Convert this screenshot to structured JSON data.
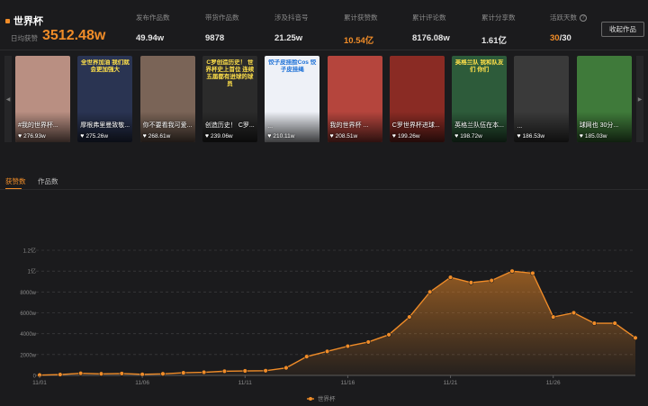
{
  "topic": {
    "name": "世界杯",
    "daily_label": "日均获赞",
    "daily_value": "3512.48w"
  },
  "stats": [
    {
      "label": "发布作品数",
      "value": "49.94w"
    },
    {
      "label": "带货作品数",
      "value": "9878"
    },
    {
      "label": "涉及抖音号",
      "value": "21.25w"
    },
    {
      "label": "累计获赞数",
      "value": "10.54亿",
      "accent": true
    },
    {
      "label": "累计评论数",
      "value": "8176.08w"
    },
    {
      "label": "累计分享数",
      "value": "1.61亿"
    },
    {
      "label": "活跃天数",
      "value_accent": "30",
      "value_rest": "/30",
      "info": "?"
    }
  ],
  "collect_button": "收起作品",
  "carousel": {
    "left_arrow": "◀",
    "right_arrow": "▶",
    "videos": [
      {
        "title": "#我的世界杯...",
        "likes": "276.93w",
        "caption": "",
        "bg": "#b98f82"
      },
      {
        "title": "摩根弗里曼致敬...",
        "likes": "275.26w",
        "caption": "全世界加油 我们就会更加强大",
        "bg": "#2a3452"
      },
      {
        "title": "你不要看我可爱...",
        "likes": "268.61w",
        "caption": "",
        "bg": "#7a6457"
      },
      {
        "title": "创造历史！ C罗...",
        "likes": "239.06w",
        "caption": "C罗创造历史！ 世界杯史上首位 连续五届都有进球的球员",
        "bg": "#2b2b2b"
      },
      {
        "title": "...",
        "likes": "210.11w",
        "caption": "饺子皮挂脸Cos 饺子皮挂绳",
        "bg": "#eef1f7"
      },
      {
        "title": "我的世界杯 ...",
        "likes": "208.51w",
        "caption": "",
        "bg": "#b5453d"
      },
      {
        "title": "C罗世界杯进球...",
        "likes": "199.26w",
        "caption": "",
        "bg": "#8a2b24"
      },
      {
        "title": "英格兰队伍在本...",
        "likes": "198.72w",
        "caption": "英格兰队 我和队友们 你们",
        "bg": "#2d5b3a"
      },
      {
        "title": "...",
        "likes": "186.53w",
        "caption": "",
        "bg": "#3a3a3a"
      },
      {
        "title": "球网也 30分...",
        "likes": "185.03w",
        "caption": "",
        "bg": "#3f7a3a"
      }
    ]
  },
  "tabs": [
    {
      "label": "获赞数",
      "active": true
    },
    {
      "label": "作品数",
      "active": false
    }
  ],
  "colors": {
    "accent": "#f08c28",
    "background": "#1b1b1d"
  },
  "chart_data": {
    "type": "area",
    "title": "",
    "xlabel": "",
    "ylabel": "",
    "ylim": [
      0,
      12000
    ],
    "y_ticks": [
      0,
      2000,
      4000,
      6000,
      8000,
      10000,
      12000
    ],
    "y_tick_labels": [
      "0",
      "2000w",
      "4000w",
      "6000w",
      "8000w",
      "1亿",
      "1.2亿"
    ],
    "x_ticks": [
      {
        "label": "11/01",
        "x": 0
      },
      {
        "label": "11/06",
        "x": 5
      },
      {
        "label": "11/11",
        "x": 10
      },
      {
        "label": "11/16",
        "x": 15
      },
      {
        "label": "11/21",
        "x": 20
      },
      {
        "label": "11/26",
        "x": 25
      }
    ],
    "grid": true,
    "legend_position": "bottom",
    "series": [
      {
        "name": "世界杯",
        "color": "#f08c28",
        "values": [
          30,
          80,
          200,
          150,
          180,
          100,
          150,
          250,
          300,
          400,
          430,
          450,
          720,
          1800,
          2300,
          2800,
          3200,
          3900,
          5600,
          8000,
          9400,
          8900,
          9100,
          10000,
          9800,
          5600,
          6000,
          5000,
          5000,
          3600
        ]
      }
    ]
  }
}
